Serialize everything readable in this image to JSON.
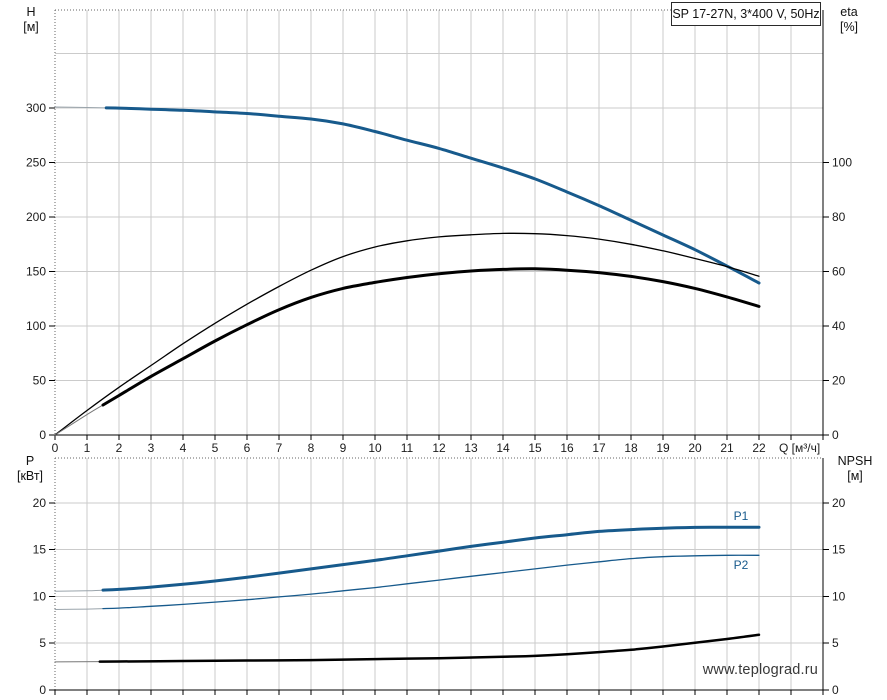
{
  "watermark": "www.teplograd.ru",
  "colors": {
    "accent_blue": "#175a8c",
    "curve_black": "#000000",
    "grid": "#cbcbcb",
    "axis": "#000000",
    "dotted_border": "#666666",
    "lead_in_gray": "#9aa4ab",
    "tick_text": "#1c1c1c",
    "watermark_text": "#383838"
  },
  "chart_data": [
    {
      "type": "line",
      "title": "SP 17-27N, 3*400 V, 50Hz",
      "x_axis": {
        "label": "Q [м³/ч]",
        "min": 0,
        "max": 24,
        "tick_step": 1,
        "labeled_ticks": [
          0,
          1,
          2,
          3,
          4,
          5,
          6,
          7,
          8,
          9,
          10,
          11,
          12,
          13,
          14,
          15,
          16,
          17,
          18,
          19,
          20,
          21,
          22
        ]
      },
      "y_left": {
        "label": "H",
        "unit": "[м]",
        "min": 0,
        "max": 390,
        "labeled_ticks": [
          0,
          50,
          100,
          150,
          200,
          250,
          300
        ],
        "grid_lines": [
          50,
          100,
          150,
          200,
          250,
          300,
          350
        ]
      },
      "y_right": {
        "label": "eta",
        "unit": "[%]",
        "min": 0,
        "max": 156,
        "labeled_ticks": [
          0,
          20,
          40,
          60,
          80,
          100
        ]
      },
      "legend_position": "none",
      "grid": true,
      "series": [
        {
          "name": "head-curve",
          "label": "H",
          "axis": "left",
          "color": "#175a8c",
          "width": 3,
          "thin_until": 1.6,
          "lead_color": "#9aa4ab",
          "points": [
            [
              0,
              301
            ],
            [
              1,
              300.5
            ],
            [
              2,
              300
            ],
            [
              3,
              299
            ],
            [
              4,
              298
            ],
            [
              5,
              296.5
            ],
            [
              6,
              295
            ],
            [
              7,
              292.5
            ],
            [
              8,
              290
            ],
            [
              9,
              285.5
            ],
            [
              10,
              278.5
            ],
            [
              11,
              270.5
            ],
            [
              12,
              263
            ],
            [
              13,
              254
            ],
            [
              14,
              245
            ],
            [
              15,
              235
            ],
            [
              16,
              223
            ],
            [
              17,
              210.5
            ],
            [
              18,
              197
            ],
            [
              19,
              183.5
            ],
            [
              20,
              170
            ],
            [
              21,
              155
            ],
            [
              22,
              139.5
            ]
          ]
        },
        {
          "name": "eta-pump-curve",
          "label": "eta pump",
          "axis": "right",
          "color": "#000000",
          "width": 1.3,
          "points": [
            [
              0,
              0
            ],
            [
              1,
              9
            ],
            [
              2,
              17.5
            ],
            [
              3,
              25.5
            ],
            [
              4,
              33.5
            ],
            [
              5,
              41
            ],
            [
              6,
              48
            ],
            [
              7,
              54.5
            ],
            [
              8,
              60.5
            ],
            [
              9,
              65.5
            ],
            [
              10,
              69
            ],
            [
              11,
              71.3
            ],
            [
              12,
              72.7
            ],
            [
              13,
              73.5
            ],
            [
              14,
              74
            ],
            [
              15,
              73.9
            ],
            [
              16,
              73.2
            ],
            [
              17,
              71.9
            ],
            [
              18,
              70
            ],
            [
              19,
              67.6
            ],
            [
              20,
              64.8
            ],
            [
              21,
              61.8
            ],
            [
              22,
              58.3
            ]
          ]
        },
        {
          "name": "eta-pump-motor-curve",
          "label": "eta pump+motor",
          "axis": "right",
          "color": "#000000",
          "width": 3,
          "thin_until": 1.5,
          "lead_color": "#777777",
          "points": [
            [
              0,
              0
            ],
            [
              1,
              7.5
            ],
            [
              2,
              14.5
            ],
            [
              3,
              21.5
            ],
            [
              4,
              28
            ],
            [
              5,
              34.5
            ],
            [
              6,
              40.5
            ],
            [
              7,
              46
            ],
            [
              8,
              50.5
            ],
            [
              9,
              53.8
            ],
            [
              10,
              56
            ],
            [
              11,
              57.8
            ],
            [
              12,
              59.2
            ],
            [
              13,
              60.2
            ],
            [
              14,
              60.8
            ],
            [
              15,
              61
            ],
            [
              16,
              60.5
            ],
            [
              17,
              59.6
            ],
            [
              18,
              58.2
            ],
            [
              19,
              56.3
            ],
            [
              20,
              53.8
            ],
            [
              21,
              50.7
            ],
            [
              22,
              47.2
            ]
          ]
        }
      ]
    },
    {
      "type": "line",
      "title": "",
      "x_axis": {
        "label": "",
        "min": 0,
        "max": 24,
        "tick_step": 1,
        "labeled_ticks": []
      },
      "y_left": {
        "label": "P",
        "unit": "[кВт]",
        "min": 0,
        "max": 24.8,
        "labeled_ticks": [
          0,
          5,
          10,
          15,
          20
        ],
        "grid_lines": [
          5,
          10,
          15,
          20
        ]
      },
      "y_right": {
        "label": "NPSH",
        "unit": "[м]",
        "min": 0,
        "max": 24.8,
        "labeled_ticks": [
          0,
          5,
          10,
          15,
          20
        ]
      },
      "legend_position": "inline-right",
      "grid": true,
      "series": [
        {
          "name": "p1-curve",
          "label": "P1",
          "axis": "left",
          "color": "#175a8c",
          "width": 3,
          "thin_until": 1.5,
          "lead_color": "#9aa4ab",
          "points": [
            [
              0,
              10.55
            ],
            [
              1,
              10.6
            ],
            [
              2,
              10.75
            ],
            [
              3,
              11
            ],
            [
              4,
              11.3
            ],
            [
              5,
              11.65
            ],
            [
              6,
              12.05
            ],
            [
              7,
              12.5
            ],
            [
              8,
              12.95
            ],
            [
              9,
              13.4
            ],
            [
              10,
              13.85
            ],
            [
              11,
              14.35
            ],
            [
              12,
              14.85
            ],
            [
              13,
              15.35
            ],
            [
              14,
              15.8
            ],
            [
              15,
              16.25
            ],
            [
              16,
              16.6
            ],
            [
              17,
              16.95
            ],
            [
              18,
              17.15
            ],
            [
              19,
              17.3
            ],
            [
              20,
              17.38
            ],
            [
              21,
              17.4
            ],
            [
              22,
              17.4
            ]
          ]
        },
        {
          "name": "p2-curve",
          "label": "P2",
          "axis": "left",
          "color": "#175a8c",
          "width": 1.3,
          "thin_until": 1.5,
          "lead_color": "#9aa4ab",
          "points": [
            [
              0,
              8.6
            ],
            [
              1,
              8.65
            ],
            [
              2,
              8.75
            ],
            [
              3,
              8.95
            ],
            [
              4,
              9.15
            ],
            [
              5,
              9.4
            ],
            [
              6,
              9.65
            ],
            [
              7,
              9.95
            ],
            [
              8,
              10.25
            ],
            [
              9,
              10.6
            ],
            [
              10,
              10.95
            ],
            [
              11,
              11.35
            ],
            [
              12,
              11.75
            ],
            [
              13,
              12.15
            ],
            [
              14,
              12.55
            ],
            [
              15,
              12.95
            ],
            [
              16,
              13.35
            ],
            [
              17,
              13.7
            ],
            [
              18,
              14.05
            ],
            [
              19,
              14.25
            ],
            [
              20,
              14.35
            ],
            [
              21,
              14.4
            ],
            [
              22,
              14.4
            ]
          ]
        },
        {
          "name": "npsh-curve",
          "label": "NPSH",
          "axis": "right",
          "color": "#000000",
          "width": 2.5,
          "thin_until": 1.4,
          "lead_color": "#777777",
          "points": [
            [
              0,
              3.0
            ],
            [
              2,
              3.05
            ],
            [
              4,
              3.1
            ],
            [
              6,
              3.15
            ],
            [
              8,
              3.2
            ],
            [
              10,
              3.3
            ],
            [
              12,
              3.4
            ],
            [
              14,
              3.55
            ],
            [
              15,
              3.65
            ],
            [
              16,
              3.82
            ],
            [
              17,
              4.05
            ],
            [
              18,
              4.3
            ],
            [
              19,
              4.65
            ],
            [
              20,
              5.05
            ],
            [
              21,
              5.45
            ],
            [
              22,
              5.9
            ]
          ]
        }
      ]
    }
  ]
}
